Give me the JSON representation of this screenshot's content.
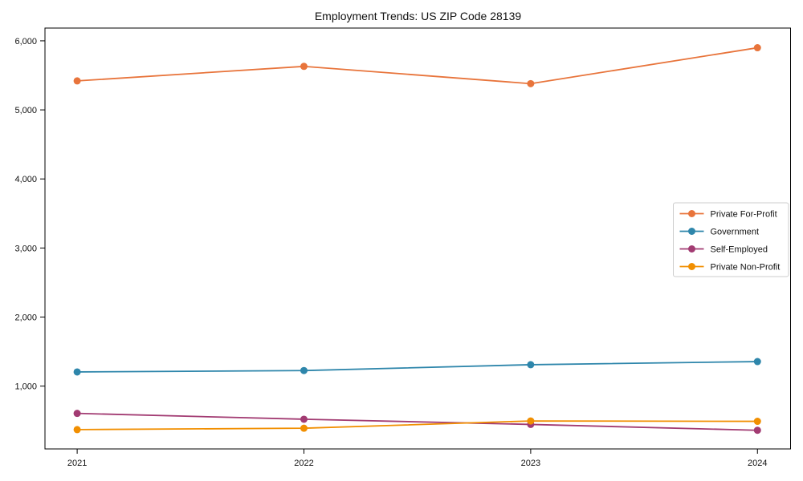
{
  "figure": {
    "background": "#ffffff"
  },
  "chart_data": {
    "type": "line",
    "title": "Employment Trends: US ZIP Code 28139",
    "xlabel": "",
    "ylabel": "",
    "x": [
      2021,
      2022,
      2023,
      2024
    ],
    "x_tick_labels": [
      "2021",
      "2022",
      "2023",
      "2024"
    ],
    "y_ticks": [
      1000,
      2000,
      3000,
      4000,
      5000,
      6000
    ],
    "y_tick_labels": [
      "1,000",
      "2,000",
      "3,000",
      "4,000",
      "5,000",
      "6,000"
    ],
    "xlim": [
      2020.858,
      2024.146
    ],
    "ylim": [
      90,
      6185
    ],
    "grid": false,
    "legend_position": "center-right",
    "axis_color": "#000000",
    "legend_border_color": "#cccccc",
    "legend_background": "#ffffff",
    "series": [
      {
        "name": "Private For-Profit",
        "color": "#E8743B",
        "values": [
          5420,
          5630,
          5380,
          5900
        ]
      },
      {
        "name": "Government",
        "color": "#2E86AB",
        "values": [
          1205,
          1225,
          1310,
          1355
        ]
      },
      {
        "name": "Self-Employed",
        "color": "#A23B72",
        "values": [
          605,
          520,
          445,
          360
        ]
      },
      {
        "name": "Private Non-Profit",
        "color": "#F18F01",
        "values": [
          370,
          390,
          495,
          490
        ]
      }
    ]
  }
}
